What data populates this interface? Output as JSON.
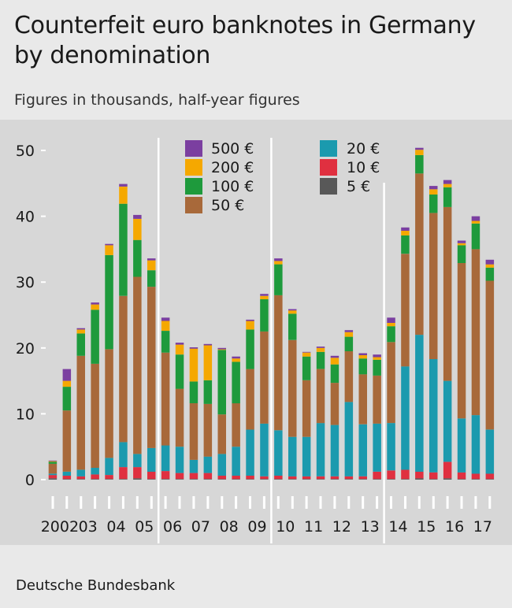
{
  "title": "Counterfeit euro banknotes in Germany by denomination",
  "subtitle": "Figures in thousands, half-year figures",
  "source": "Deutsche Bundesbank",
  "colors": {
    "500": "#7b3fa0",
    "200": "#f5a800",
    "100": "#1e9a3c",
    "50": "#a8693a",
    "20": "#1b9aae",
    "10": "#e03040",
    "5": "#585858",
    "plot_background": "#d7d7d7",
    "page_background": "#e9e9e9"
  },
  "chart_data": {
    "type": "bar",
    "stacked": true,
    "ylim": [
      0,
      50
    ],
    "yticks": [
      0,
      10,
      20,
      30,
      40,
      50
    ],
    "grid": false,
    "legend_position": "top",
    "year_labels": [
      "2002",
      "03",
      "04",
      "05",
      "06",
      "07",
      "08",
      "09",
      "10",
      "11",
      "12",
      "13",
      "14",
      "15",
      "16",
      "17"
    ],
    "categories": [
      "2002 H1",
      "2002 H2",
      "2003 H1",
      "2003 H2",
      "2004 H1",
      "2004 H2",
      "2005 H1",
      "2005 H2",
      "2006 H1",
      "2006 H2",
      "2007 H1",
      "2007 H2",
      "2008 H1",
      "2008 H2",
      "2009 H1",
      "2009 H2",
      "2010 H1",
      "2010 H2",
      "2011 H1",
      "2011 H2",
      "2012 H1",
      "2012 H2",
      "2013 H1",
      "2013 H2",
      "2014 H1",
      "2014 H2",
      "2015 H1",
      "2015 H2",
      "2016 H1",
      "2016 H2",
      "2017 H1",
      "2017 H2"
    ],
    "series": [
      {
        "name": "5 €",
        "key": "5",
        "values": [
          0.2,
          0.1,
          0.1,
          0.1,
          0.1,
          0.1,
          0.2,
          0.1,
          0.1,
          0.1,
          0.1,
          0.1,
          0.1,
          0.1,
          0.1,
          0.1,
          0.1,
          0.1,
          0.1,
          0.1,
          0.1,
          0.1,
          0.1,
          0.1,
          0.1,
          0.1,
          0.2,
          0.1,
          0.2,
          0.1,
          0.1,
          0.1
        ]
      },
      {
        "name": "10 €",
        "key": "10",
        "values": [
          0.5,
          0.5,
          0.4,
          0.7,
          0.6,
          1.8,
          1.7,
          1.1,
          1.2,
          0.9,
          0.9,
          0.9,
          0.5,
          0.5,
          0.5,
          0.4,
          0.5,
          0.4,
          0.4,
          0.4,
          0.4,
          0.4,
          0.4,
          1.1,
          1.3,
          1.4,
          1.0,
          1.0,
          2.5,
          1.0,
          0.8,
          0.8
        ]
      },
      {
        "name": "20 €",
        "key": "20",
        "values": [
          0.2,
          0.6,
          1.0,
          1.0,
          2.6,
          3.8,
          2.0,
          3.6,
          3.9,
          4.0,
          2.0,
          2.5,
          3.3,
          4.4,
          7.0,
          8.0,
          6.9,
          6.0,
          6.0,
          8.1,
          7.8,
          11.3,
          7.9,
          7.3,
          7.2,
          15.7,
          20.8,
          17.2,
          12.3,
          8.2,
          8.9,
          6.7
        ]
      },
      {
        "name": "50 €",
        "key": "50",
        "values": [
          1.5,
          9.3,
          17.3,
          15.8,
          16.5,
          22.2,
          26.9,
          24.5,
          14.1,
          8.8,
          8.6,
          8.0,
          6.0,
          6.6,
          9.2,
          14.0,
          20.5,
          14.7,
          8.6,
          8.2,
          6.4,
          7.7,
          7.6,
          7.3,
          12.3,
          17.1,
          24.5,
          22.2,
          26.4,
          23.6,
          25.2,
          22.6
        ]
      },
      {
        "name": "100 €",
        "key": "100",
        "values": [
          0.3,
          3.6,
          3.4,
          8.2,
          14.3,
          14.0,
          5.6,
          2.5,
          3.3,
          5.2,
          3.3,
          3.6,
          9.8,
          6.3,
          6.0,
          4.9,
          4.7,
          4.0,
          3.6,
          2.6,
          2.8,
          2.2,
          2.4,
          2.4,
          2.4,
          2.8,
          2.8,
          2.8,
          3.0,
          2.7,
          3.9,
          2.0
        ]
      },
      {
        "name": "200 €",
        "key": "200",
        "values": [
          0.1,
          0.9,
          0.6,
          0.8,
          1.5,
          2.6,
          3.2,
          1.5,
          1.5,
          1.5,
          5.0,
          5.3,
          0.1,
          0.5,
          1.3,
          0.5,
          0.5,
          0.5,
          0.6,
          0.6,
          1.0,
          0.7,
          0.5,
          0.4,
          0.5,
          0.7,
          0.8,
          0.8,
          0.5,
          0.3,
          0.4,
          0.5
        ]
      },
      {
        "name": "500 €",
        "key": "500",
        "values": [
          0.1,
          1.8,
          0.2,
          0.3,
          0.2,
          0.4,
          0.6,
          0.3,
          0.5,
          0.3,
          0.2,
          0.2,
          0.2,
          0.3,
          0.2,
          0.3,
          0.4,
          0.2,
          0.1,
          0.2,
          0.3,
          0.3,
          0.3,
          0.4,
          0.8,
          0.5,
          0.3,
          0.5,
          0.6,
          0.4,
          0.7,
          0.7
        ]
      }
    ],
    "legend": {
      "left": [
        {
          "label": "500 €",
          "key": "500"
        },
        {
          "label": "200 €",
          "key": "200"
        },
        {
          "label": "100 €",
          "key": "100"
        },
        {
          "label": "50 €",
          "key": "50"
        }
      ],
      "right": [
        {
          "label": "20 €",
          "key": "20"
        },
        {
          "label": "10 €",
          "key": "10"
        },
        {
          "label": "5 €",
          "key": "5"
        }
      ]
    }
  }
}
